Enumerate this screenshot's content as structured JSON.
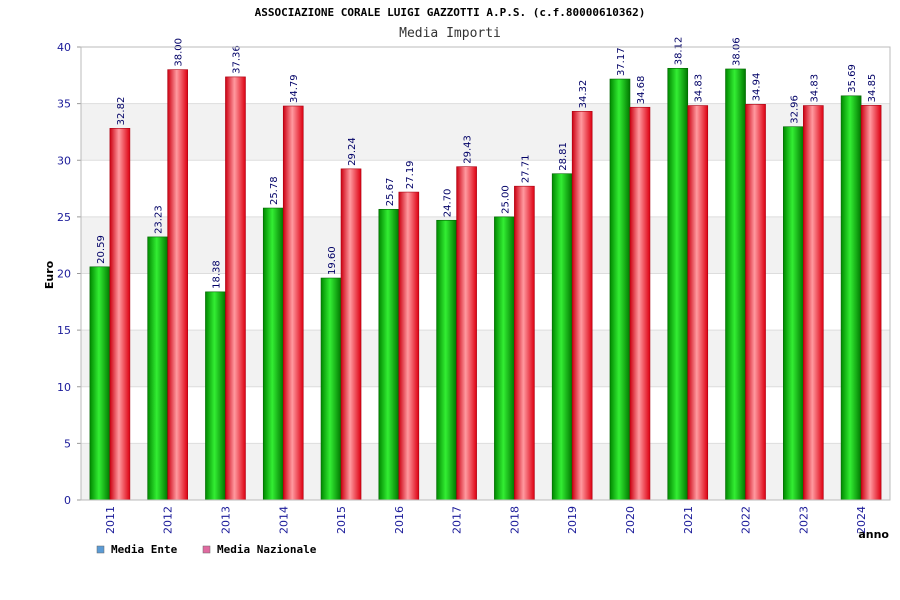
{
  "chart_data": {
    "type": "bar",
    "title": "ASSOCIAZIONE CORALE LUIGI GAZZOTTI A.P.S. (c.f.80000610362)",
    "subtitle": "Media Importi",
    "ylabel": "Euro",
    "xlabel": "anno",
    "ylim": [
      0,
      40
    ],
    "yticks": [
      0,
      5,
      10,
      15,
      20,
      25,
      30,
      35,
      40
    ],
    "categories": [
      "2011",
      "2012",
      "2013",
      "2014",
      "2015",
      "2016",
      "2017",
      "2018",
      "2019",
      "2020",
      "2021",
      "2022",
      "2023",
      "2024"
    ],
    "series": [
      {
        "name": "Media Ente",
        "color": "#00bb00",
        "legend_color": "#5b9bd5",
        "values": [
          20.59,
          23.23,
          18.38,
          25.78,
          19.6,
          25.67,
          24.7,
          25.0,
          28.81,
          37.17,
          38.12,
          38.06,
          32.96,
          35.69
        ]
      },
      {
        "name": "Media Nazionale",
        "color": "#ee1122",
        "legend_color": "#e06aa0",
        "values": [
          32.82,
          38.0,
          37.36,
          34.79,
          29.24,
          27.19,
          29.43,
          27.71,
          34.32,
          34.68,
          34.83,
          34.94,
          34.83,
          34.85
        ]
      }
    ],
    "grid": true,
    "legend_position": "bottom-left"
  }
}
